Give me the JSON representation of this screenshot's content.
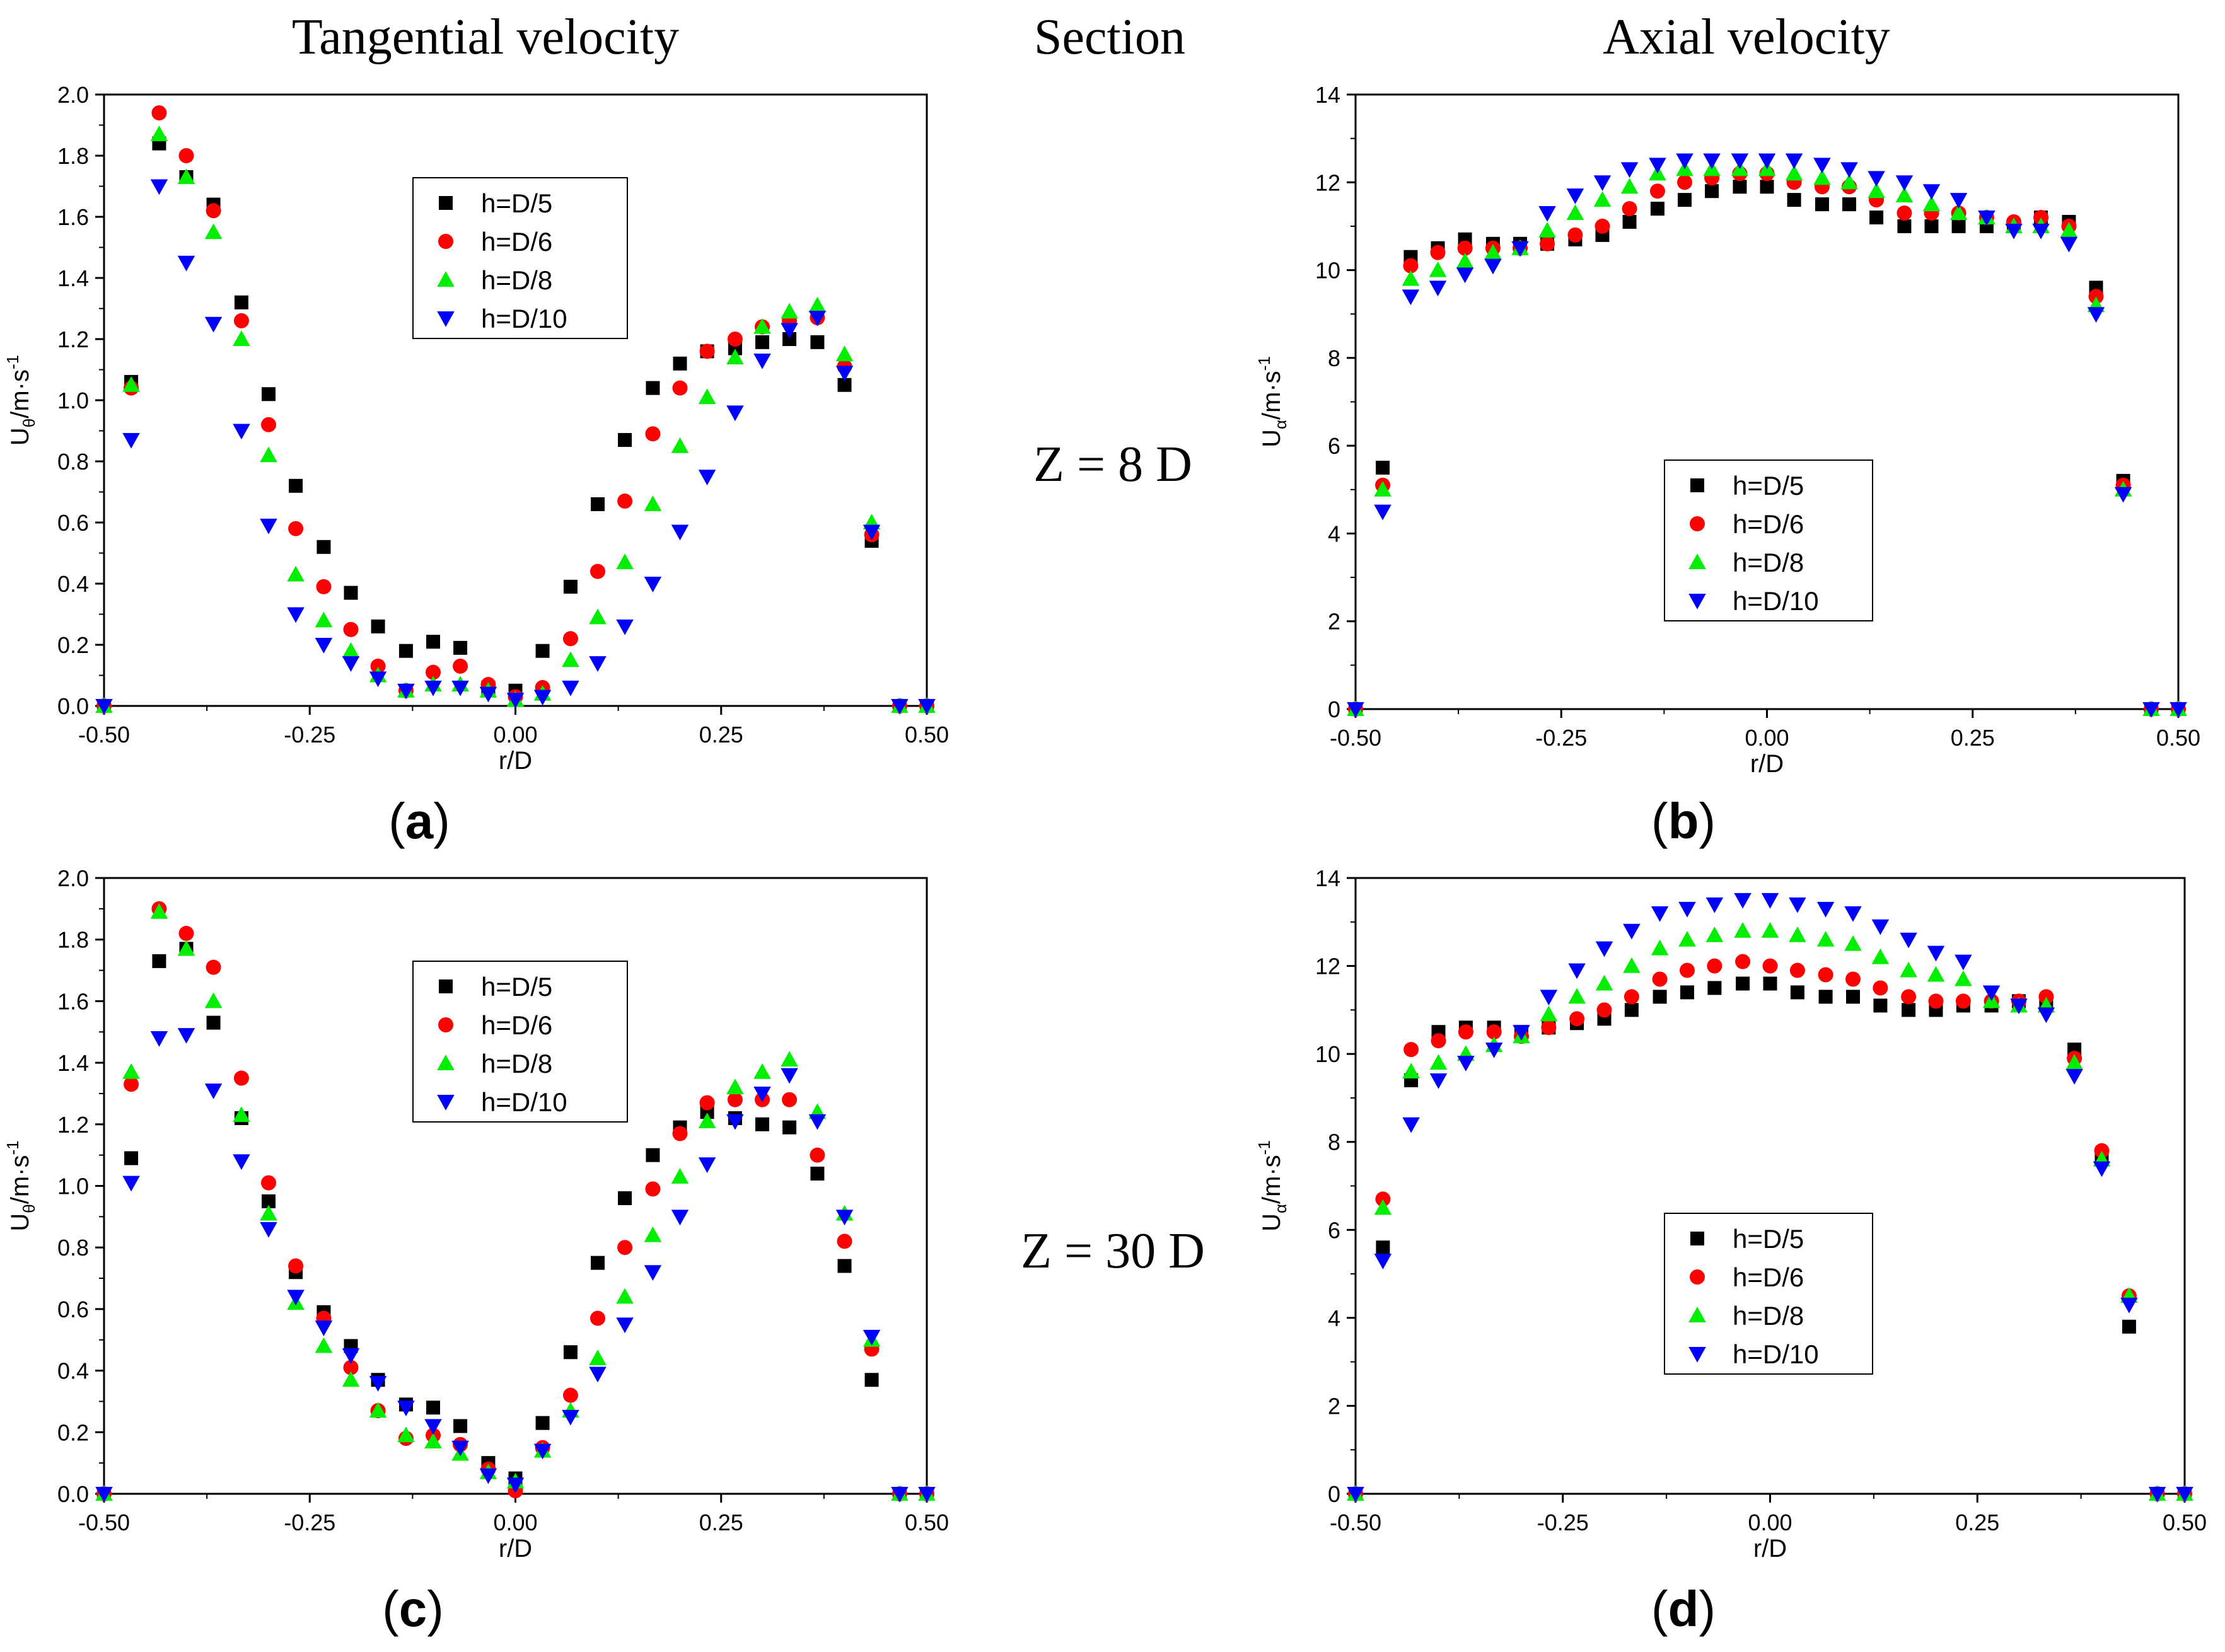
{
  "headers": {
    "tangential": "Tangential velocity",
    "section": "Section",
    "axial": "Axial velocity"
  },
  "sections": {
    "top": "Z = 8 D",
    "bottom": "Z = 30 D"
  },
  "colors": {
    "h5": "#000000",
    "h6": "#ff0000",
    "h8": "#00ee00",
    "h10": "#0000ff"
  },
  "chart_data": [
    {
      "id": "a",
      "panel_label": "a",
      "type": "scatter",
      "xlabel": "r/D",
      "ylabel": "U_θ/m·s⁻¹",
      "ylabel_main": "U",
      "ylabel_sub": "θ",
      "ylabel_unit": "/m·s",
      "ylabel_sup": "-1",
      "xlim": [
        -0.5,
        0.5
      ],
      "ylim": [
        0,
        2.0
      ],
      "xticks": [
        -0.5,
        -0.25,
        0,
        0.25,
        0.5
      ],
      "xtick_labels": [
        "-0.50",
        "-0.25",
        "0.00",
        "0.25",
        "0.50"
      ],
      "yticks": [
        0,
        0.2,
        0.4,
        0.6,
        0.8,
        1.0,
        1.2,
        1.4,
        1.6,
        1.8,
        2.0
      ],
      "ytick_labels": [
        "0.0",
        "0.2",
        "0.4",
        "0.6",
        "0.8",
        "1.0",
        "1.2",
        "1.4",
        "1.6",
        "1.8",
        "2.0"
      ],
      "legend": "upper-middle",
      "x": [
        -0.5,
        -0.467,
        -0.433,
        -0.4,
        -0.367,
        -0.333,
        -0.3,
        -0.267,
        -0.233,
        -0.2,
        -0.167,
        -0.133,
        -0.1,
        -0.067,
        -0.033,
        0.0,
        0.033,
        0.067,
        0.1,
        0.133,
        0.167,
        0.2,
        0.233,
        0.267,
        0.3,
        0.333,
        0.367,
        0.4,
        0.433,
        0.467,
        0.5
      ],
      "series": [
        {
          "name": "h=D/5",
          "marker": "square",
          "color": "#000000",
          "values": [
            0.0,
            1.06,
            1.84,
            1.73,
            1.64,
            1.32,
            1.02,
            0.72,
            0.52,
            0.37,
            0.26,
            0.18,
            0.21,
            0.19,
            0.06,
            0.05,
            0.18,
            0.39,
            0.66,
            0.87,
            1.04,
            1.12,
            1.16,
            1.17,
            1.19,
            1.2,
            1.19,
            1.05,
            0.54,
            0.0,
            0.0
          ]
        },
        {
          "name": "h=D/6",
          "marker": "circle",
          "color": "#ff0000",
          "values": [
            0.0,
            1.04,
            1.94,
            1.8,
            1.62,
            1.26,
            0.92,
            0.58,
            0.39,
            0.25,
            0.13,
            0.05,
            0.11,
            0.13,
            0.07,
            0.03,
            0.06,
            0.22,
            0.44,
            0.67,
            0.89,
            1.04,
            1.16,
            1.2,
            1.24,
            1.26,
            1.27,
            1.11,
            0.56,
            0.0,
            0.0
          ]
        },
        {
          "name": "h=D/8",
          "marker": "triangle-up",
          "color": "#00ee00",
          "values": [
            0.0,
            1.05,
            1.87,
            1.73,
            1.55,
            1.2,
            0.82,
            0.43,
            0.28,
            0.18,
            0.1,
            0.05,
            0.07,
            0.07,
            0.05,
            0.02,
            0.04,
            0.15,
            0.29,
            0.47,
            0.66,
            0.85,
            1.01,
            1.14,
            1.24,
            1.29,
            1.31,
            1.15,
            0.6,
            0.0,
            0.0
          ]
        },
        {
          "name": "h=D/10",
          "marker": "triangle-down",
          "color": "#0000ff",
          "values": [
            0.0,
            0.87,
            1.7,
            1.45,
            1.25,
            0.9,
            0.59,
            0.3,
            0.2,
            0.14,
            0.09,
            0.05,
            0.06,
            0.06,
            0.04,
            0.02,
            0.03,
            0.06,
            0.14,
            0.26,
            0.4,
            0.57,
            0.75,
            0.96,
            1.13,
            1.23,
            1.27,
            1.09,
            0.57,
            0.0,
            0.0
          ]
        }
      ]
    },
    {
      "id": "b",
      "panel_label": "b",
      "type": "scatter",
      "xlabel": "r/D",
      "ylabel": "U_α/m·s⁻¹",
      "ylabel_main": "U",
      "ylabel_sub": "α",
      "ylabel_unit": "/m·s",
      "ylabel_sup": "-1",
      "xlim": [
        -0.5,
        0.5
      ],
      "ylim": [
        0,
        14
      ],
      "xticks": [
        -0.5,
        -0.25,
        0,
        0.25,
        0.5
      ],
      "xtick_labels": [
        "-0.50",
        "-0.25",
        "0.00",
        "0.25",
        "0.50"
      ],
      "yticks": [
        0,
        2,
        4,
        6,
        8,
        10,
        12,
        14
      ],
      "ytick_labels": [
        "0",
        "2",
        "4",
        "6",
        "8",
        "10",
        "12",
        "14"
      ],
      "legend": "lower-middle",
      "x": [
        -0.5,
        -0.467,
        -0.433,
        -0.4,
        -0.367,
        -0.333,
        -0.3,
        -0.267,
        -0.233,
        -0.2,
        -0.167,
        -0.133,
        -0.1,
        -0.067,
        -0.033,
        0.0,
        0.033,
        0.067,
        0.1,
        0.133,
        0.167,
        0.2,
        0.233,
        0.267,
        0.3,
        0.333,
        0.367,
        0.4,
        0.433,
        0.467,
        0.5
      ],
      "series": [
        {
          "name": "h=D/5",
          "marker": "square",
          "color": "#000000",
          "values": [
            0.0,
            5.5,
            10.3,
            10.5,
            10.7,
            10.6,
            10.6,
            10.6,
            10.7,
            10.8,
            11.1,
            11.4,
            11.6,
            11.8,
            11.9,
            11.9,
            11.6,
            11.5,
            11.5,
            11.2,
            11.0,
            11.0,
            11.0,
            11.0,
            11.0,
            11.2,
            11.1,
            9.6,
            5.2,
            0.0,
            0.0
          ]
        },
        {
          "name": "h=D/6",
          "marker": "circle",
          "color": "#ff0000",
          "values": [
            0.0,
            5.1,
            10.1,
            10.4,
            10.5,
            10.5,
            10.5,
            10.6,
            10.8,
            11.0,
            11.4,
            11.8,
            12.0,
            12.1,
            12.2,
            12.2,
            12.0,
            11.9,
            11.9,
            11.6,
            11.3,
            11.3,
            11.3,
            11.2,
            11.1,
            11.2,
            11.0,
            9.4,
            5.1,
            0.0,
            0.0
          ]
        },
        {
          "name": "h=D/8",
          "marker": "triangle-up",
          "color": "#00ee00",
          "values": [
            0.0,
            5.0,
            9.8,
            10.0,
            10.2,
            10.4,
            10.5,
            10.9,
            11.3,
            11.6,
            11.9,
            12.2,
            12.3,
            12.3,
            12.3,
            12.3,
            12.2,
            12.1,
            12.0,
            11.8,
            11.7,
            11.5,
            11.3,
            11.2,
            11.0,
            11.0,
            10.9,
            9.2,
            5.0,
            0.0,
            0.0
          ]
        },
        {
          "name": "h=D/10",
          "marker": "triangle-down",
          "color": "#0000ff",
          "values": [
            0.0,
            4.5,
            9.4,
            9.6,
            9.9,
            10.1,
            10.5,
            11.3,
            11.7,
            12.0,
            12.3,
            12.4,
            12.5,
            12.5,
            12.5,
            12.5,
            12.5,
            12.4,
            12.3,
            12.1,
            12.0,
            11.8,
            11.6,
            11.2,
            10.9,
            10.9,
            10.6,
            9.0,
            4.9,
            0.0,
            0.0
          ]
        }
      ]
    },
    {
      "id": "c",
      "panel_label": "c",
      "type": "scatter",
      "xlabel": "r/D",
      "ylabel": "U_θ/m·s⁻¹",
      "ylabel_main": "U",
      "ylabel_sub": "θ",
      "ylabel_unit": "/m·s",
      "ylabel_sup": "-1",
      "xlim": [
        -0.5,
        0.5
      ],
      "ylim": [
        0,
        2.0
      ],
      "xticks": [
        -0.5,
        -0.25,
        0,
        0.25,
        0.5
      ],
      "xtick_labels": [
        "-0.50",
        "-0.25",
        "0.00",
        "0.25",
        "0.50"
      ],
      "yticks": [
        0,
        0.2,
        0.4,
        0.6,
        0.8,
        1.0,
        1.2,
        1.4,
        1.6,
        1.8,
        2.0
      ],
      "ytick_labels": [
        "0.0",
        "0.2",
        "0.4",
        "0.6",
        "0.8",
        "1.0",
        "1.2",
        "1.4",
        "1.6",
        "1.8",
        "2.0"
      ],
      "legend": "upper-middle",
      "x": [
        -0.5,
        -0.467,
        -0.433,
        -0.4,
        -0.367,
        -0.333,
        -0.3,
        -0.267,
        -0.233,
        -0.2,
        -0.167,
        -0.133,
        -0.1,
        -0.067,
        -0.033,
        0.0,
        0.033,
        0.067,
        0.1,
        0.133,
        0.167,
        0.2,
        0.233,
        0.267,
        0.3,
        0.333,
        0.367,
        0.4,
        0.433,
        0.467,
        0.5
      ],
      "series": [
        {
          "name": "h=D/5",
          "marker": "square",
          "color": "#000000",
          "values": [
            0.0,
            1.09,
            1.73,
            1.77,
            1.53,
            1.22,
            0.95,
            0.72,
            0.59,
            0.48,
            0.37,
            0.29,
            0.28,
            0.22,
            0.1,
            0.05,
            0.23,
            0.46,
            0.75,
            0.96,
            1.1,
            1.19,
            1.24,
            1.22,
            1.2,
            1.19,
            1.04,
            0.74,
            0.37,
            0.0,
            0.0
          ]
        },
        {
          "name": "h=D/6",
          "marker": "circle",
          "color": "#ff0000",
          "values": [
            0.0,
            1.33,
            1.9,
            1.82,
            1.71,
            1.35,
            1.01,
            0.74,
            0.57,
            0.41,
            0.27,
            0.18,
            0.19,
            0.16,
            0.08,
            0.01,
            0.15,
            0.32,
            0.57,
            0.8,
            0.99,
            1.17,
            1.27,
            1.28,
            1.28,
            1.28,
            1.1,
            0.82,
            0.47,
            0.0,
            0.0
          ]
        },
        {
          "name": "h=D/8",
          "marker": "triangle-up",
          "color": "#00ee00",
          "values": [
            0.0,
            1.37,
            1.89,
            1.77,
            1.6,
            1.23,
            0.91,
            0.62,
            0.48,
            0.37,
            0.27,
            0.19,
            0.17,
            0.13,
            0.07,
            0.04,
            0.14,
            0.27,
            0.44,
            0.64,
            0.84,
            1.03,
            1.21,
            1.32,
            1.37,
            1.41,
            1.24,
            0.91,
            0.5,
            0.0,
            0.0
          ]
        },
        {
          "name": "h=D/10",
          "marker": "triangle-down",
          "color": "#0000ff",
          "values": [
            0.0,
            1.01,
            1.48,
            1.49,
            1.31,
            1.08,
            0.86,
            0.64,
            0.54,
            0.45,
            0.36,
            0.28,
            0.22,
            0.15,
            0.06,
            0.03,
            0.14,
            0.25,
            0.39,
            0.55,
            0.72,
            0.9,
            1.07,
            1.21,
            1.3,
            1.36,
            1.21,
            0.9,
            0.51,
            0.0,
            0.0
          ]
        }
      ]
    },
    {
      "id": "d",
      "panel_label": "d",
      "type": "scatter",
      "xlabel": "r/D",
      "ylabel": "U_α/m·s⁻¹",
      "ylabel_main": "U",
      "ylabel_sub": "α",
      "ylabel_unit": "/m·s",
      "ylabel_sup": "-1",
      "xlim": [
        -0.5,
        0.5
      ],
      "ylim": [
        0,
        14
      ],
      "xticks": [
        -0.5,
        -0.25,
        0,
        0.25,
        0.5
      ],
      "xtick_labels": [
        "-0.50",
        "-0.25",
        "0.00",
        "0.25",
        "0.50"
      ],
      "yticks": [
        0,
        2,
        4,
        6,
        8,
        10,
        12,
        14
      ],
      "ytick_labels": [
        "0",
        "2",
        "4",
        "6",
        "8",
        "10",
        "12",
        "14"
      ],
      "legend": "lower-middle",
      "x": [
        -0.5,
        -0.467,
        -0.433,
        -0.4,
        -0.367,
        -0.333,
        -0.3,
        -0.267,
        -0.233,
        -0.2,
        -0.167,
        -0.133,
        -0.1,
        -0.067,
        -0.033,
        0.0,
        0.033,
        0.067,
        0.1,
        0.133,
        0.167,
        0.2,
        0.233,
        0.267,
        0.3,
        0.333,
        0.367,
        0.4,
        0.433,
        0.467,
        0.5
      ],
      "series": [
        {
          "name": "h=D/5",
          "marker": "square",
          "color": "#000000",
          "values": [
            0.0,
            5.6,
            9.4,
            10.5,
            10.6,
            10.6,
            10.5,
            10.6,
            10.7,
            10.8,
            11.0,
            11.3,
            11.4,
            11.5,
            11.6,
            11.6,
            11.4,
            11.3,
            11.3,
            11.1,
            11.0,
            11.0,
            11.1,
            11.1,
            11.2,
            11.1,
            10.1,
            7.6,
            3.8,
            0.0,
            0.0
          ]
        },
        {
          "name": "h=D/6",
          "marker": "circle",
          "color": "#ff0000",
          "values": [
            0.0,
            6.7,
            10.1,
            10.3,
            10.5,
            10.5,
            10.4,
            10.6,
            10.8,
            11.0,
            11.3,
            11.7,
            11.9,
            12.0,
            12.1,
            12.0,
            11.9,
            11.8,
            11.7,
            11.5,
            11.3,
            11.2,
            11.2,
            11.2,
            11.2,
            11.3,
            9.9,
            7.8,
            4.5,
            0.0,
            0.0
          ]
        },
        {
          "name": "h=D/8",
          "marker": "triangle-up",
          "color": "#00ee00",
          "values": [
            0.0,
            6.5,
            9.6,
            9.8,
            10.0,
            10.2,
            10.4,
            10.9,
            11.3,
            11.6,
            12.0,
            12.4,
            12.6,
            12.7,
            12.8,
            12.8,
            12.7,
            12.6,
            12.5,
            12.2,
            11.9,
            11.8,
            11.7,
            11.2,
            11.1,
            11.1,
            9.8,
            7.6,
            4.5,
            0.0,
            0.0
          ]
        },
        {
          "name": "h=D/10",
          "marker": "triangle-down",
          "color": "#0000ff",
          "values": [
            0.0,
            5.3,
            8.4,
            9.4,
            9.8,
            10.1,
            10.5,
            11.3,
            11.9,
            12.4,
            12.8,
            13.2,
            13.3,
            13.4,
            13.5,
            13.5,
            13.4,
            13.3,
            13.2,
            12.9,
            12.6,
            12.3,
            12.1,
            11.4,
            11.1,
            10.9,
            9.5,
            7.4,
            4.3,
            0.0,
            0.0
          ]
        }
      ]
    }
  ]
}
